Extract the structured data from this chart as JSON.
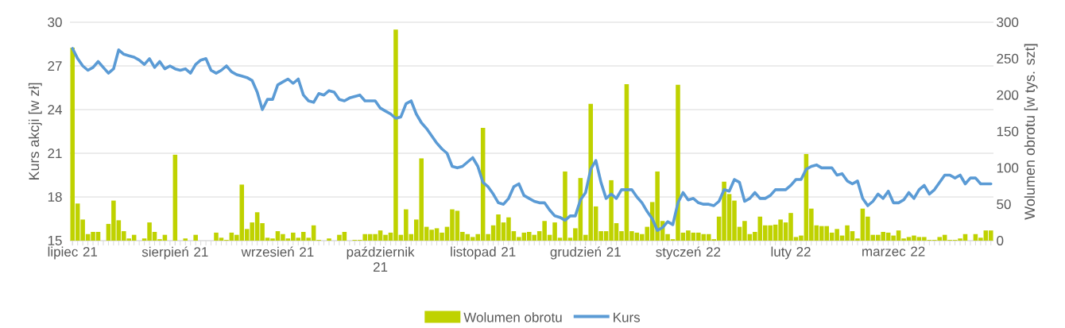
{
  "chart_data": {
    "type": "bar",
    "ylabel": "Kurs akcji [w zł]",
    "y2label": "Wolumen obrotu [w tys. szt]",
    "categories": [
      "lipiec 21",
      null,
      null,
      null,
      null,
      null,
      null,
      null,
      null,
      null,
      null,
      null,
      null,
      null,
      null,
      null,
      null,
      null,
      null,
      null,
      "sierpień 21",
      null,
      null,
      null,
      null,
      null,
      null,
      null,
      null,
      null,
      null,
      null,
      null,
      null,
      null,
      null,
      null,
      null,
      null,
      null,
      "wrzesień 21",
      null,
      null,
      null,
      null,
      null,
      null,
      null,
      null,
      null,
      null,
      null,
      null,
      null,
      null,
      null,
      null,
      null,
      null,
      null,
      "październik 21",
      null,
      null,
      null,
      null,
      null,
      null,
      null,
      null,
      null,
      null,
      null,
      null,
      null,
      null,
      null,
      null,
      null,
      null,
      null,
      "listopad 21",
      null,
      null,
      null,
      null,
      null,
      null,
      null,
      null,
      null,
      null,
      null,
      null,
      null,
      null,
      null,
      null,
      null,
      null,
      null,
      "grudzień 21",
      null,
      null,
      null,
      null,
      null,
      null,
      null,
      null,
      null,
      null,
      null,
      null,
      null,
      null,
      null,
      null,
      null,
      null,
      null,
      "styczeń 22",
      null,
      null,
      null,
      null,
      null,
      null,
      null,
      null,
      null,
      null,
      null,
      null,
      null,
      null,
      null,
      null,
      null,
      null,
      null,
      "luty 22",
      null,
      null,
      null,
      null,
      null,
      null,
      null,
      null,
      null,
      null,
      null,
      null,
      null,
      null,
      null,
      null,
      null,
      null,
      null,
      "marzec 22",
      null,
      null,
      null,
      null,
      null,
      null,
      null,
      null,
      null,
      null,
      null,
      null,
      null,
      null,
      null,
      null,
      null,
      null,
      null
    ],
    "series": [
      {
        "name": "Wolumen obrotu",
        "axis": "y2",
        "color": "#bfd200",
        "values": [
          265,
          51,
          29,
          9,
          12,
          12,
          0,
          23,
          55,
          28,
          13,
          3,
          8,
          0,
          3,
          25,
          12,
          2,
          8,
          0,
          118,
          0,
          3,
          0,
          8,
          0,
          0,
          0,
          11,
          4,
          1,
          11,
          8,
          77,
          16,
          25,
          39,
          24,
          4,
          3,
          13,
          9,
          3,
          11,
          4,
          12,
          4,
          21,
          1,
          0,
          3,
          0,
          8,
          12,
          0,
          1,
          1,
          9,
          9,
          9,
          14,
          8,
          11,
          290,
          8,
          43,
          9,
          29,
          113,
          19,
          15,
          17,
          11,
          19,
          43,
          41,
          12,
          9,
          5,
          9,
          155,
          9,
          21,
          36,
          25,
          32,
          13,
          5,
          11,
          12,
          8,
          13,
          27,
          8,
          25,
          4,
          95,
          4,
          17,
          86,
          8,
          188,
          47,
          13,
          13,
          83,
          24,
          13,
          215,
          13,
          11,
          9,
          19,
          53,
          95,
          27,
          9,
          2,
          214,
          11,
          14,
          11,
          11,
          9,
          9,
          2,
          33,
          81,
          64,
          55,
          19,
          27,
          9,
          12,
          33,
          21,
          21,
          22,
          29,
          25,
          38,
          5,
          7,
          119,
          44,
          21,
          20,
          20,
          11,
          16,
          7,
          21,
          13,
          3,
          44,
          33,
          8,
          8,
          12,
          11,
          7,
          14,
          3,
          5,
          7,
          5,
          5,
          1,
          1,
          5,
          8,
          1,
          1,
          3,
          9,
          0,
          9,
          4,
          14,
          14
        ]
      },
      {
        "name": "Kurs",
        "type": "line",
        "axis": "y",
        "color": "#5b9bd5",
        "values": [
          28.2,
          27.5,
          27.0,
          26.7,
          26.9,
          27.3,
          26.9,
          26.5,
          26.8,
          28.1,
          27.8,
          27.7,
          27.6,
          27.4,
          27.1,
          27.5,
          26.9,
          27.3,
          26.8,
          27.0,
          26.8,
          26.7,
          26.8,
          26.5,
          27.1,
          27.4,
          27.5,
          26.7,
          26.5,
          26.7,
          27.0,
          26.6,
          26.4,
          26.3,
          26.2,
          26.0,
          25.2,
          24.0,
          24.7,
          24.7,
          25.7,
          25.9,
          26.1,
          25.8,
          26.1,
          25.0,
          24.6,
          24.5,
          25.1,
          25.0,
          25.3,
          25.2,
          24.7,
          24.6,
          24.8,
          24.9,
          25.0,
          24.6,
          24.6,
          24.6,
          24.1,
          23.9,
          23.7,
          23.4,
          23.5,
          24.4,
          24.6,
          23.7,
          23.1,
          22.7,
          22.2,
          21.7,
          21.3,
          21.0,
          20.1,
          20.0,
          20.1,
          20.4,
          20.7,
          20.1,
          19.0,
          18.7,
          18.2,
          17.6,
          17.5,
          17.9,
          18.7,
          18.9,
          18.1,
          17.9,
          17.7,
          17.6,
          17.6,
          17.1,
          16.7,
          16.6,
          16.4,
          16.7,
          16.7,
          17.8,
          18.3,
          19.9,
          20.5,
          19.0,
          17.9,
          18.2,
          17.9,
          18.5,
          18.5,
          18.5,
          18.0,
          17.6,
          17.0,
          16.5,
          15.7,
          15.9,
          16.3,
          16.1,
          17.6,
          18.3,
          17.8,
          17.9,
          17.6,
          17.5,
          17.5,
          17.4,
          17.7,
          18.5,
          18.4,
          19.2,
          19.0,
          17.7,
          17.9,
          18.3,
          17.9,
          17.9,
          18.1,
          18.5,
          18.5,
          18.5,
          18.8,
          19.2,
          19.2,
          19.9,
          20.1,
          20.2,
          20.0,
          20.0,
          20.0,
          19.5,
          19.6,
          19.1,
          18.9,
          19.1,
          17.9,
          17.4,
          17.7,
          18.2,
          17.9,
          18.4,
          17.6,
          17.6,
          17.8,
          18.3,
          17.9,
          18.5,
          18.8,
          18.2,
          18.5,
          19.0,
          19.5,
          19.5,
          19.3,
          19.5,
          18.9,
          19.3,
          19.3,
          18.9,
          18.9,
          18.9
        ]
      }
    ],
    "ylim": [
      15,
      30
    ],
    "yticks": [
      15,
      18,
      21,
      24,
      27,
      30
    ],
    "y2lim": [
      0,
      300
    ],
    "y2ticks": [
      0,
      50,
      100,
      150,
      200,
      250,
      300
    ],
    "grid": "y",
    "legend": "bottom"
  }
}
